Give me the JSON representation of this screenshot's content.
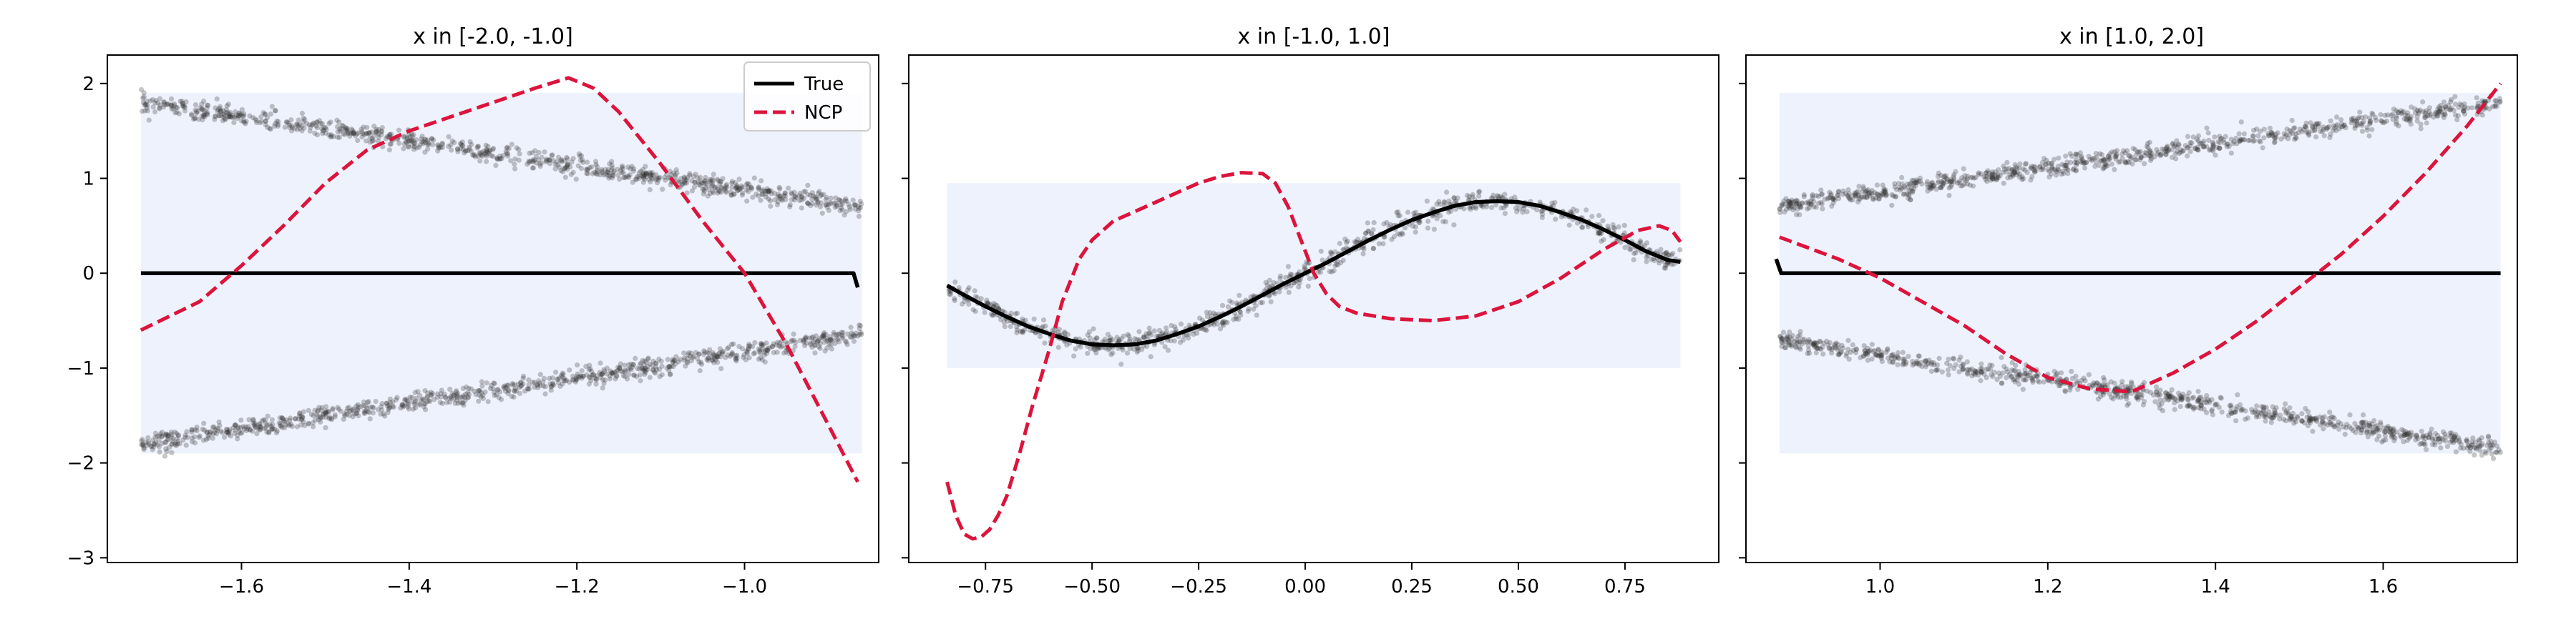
{
  "chart_data": [
    {
      "type": "line",
      "title": "x in [-2.0, -1.0]",
      "xlabel": "",
      "ylabel": "",
      "xlim": [
        -1.76,
        -0.84
      ],
      "ylim": [
        -3.05,
        2.3
      ],
      "xticks": [
        -1.6,
        -1.4,
        -1.2,
        -1.0
      ],
      "xtick_labels": [
        "−1.6",
        "−1.4",
        "−1.2",
        "−1.0"
      ],
      "yticks": [
        2,
        1,
        0,
        -1,
        -2,
        -3
      ],
      "ytick_labels": [
        "2",
        "1",
        "0",
        "−1",
        "−2",
        "−3"
      ],
      "grid": false,
      "legend": {
        "placement": "top-right",
        "entries": [
          "True",
          "NCP"
        ]
      },
      "shaded_band": {
        "x": [
          -1.72,
          -0.86
        ],
        "y": [
          -1.9,
          1.9
        ],
        "color": "#eef2fc"
      },
      "scatter_clouds": [
        {
          "x_range": [
            -1.72,
            -0.86
          ],
          "y_start": 1.8,
          "y_end": 0.7,
          "spread": 0.05
        },
        {
          "x_range": [
            -1.72,
            -0.86
          ],
          "y_start": -1.8,
          "y_end": -0.65,
          "spread": 0.05
        }
      ],
      "series": [
        {
          "name": "True",
          "style": "solid",
          "color": "#000000",
          "x": [
            -1.72,
            -1.6,
            -1.4,
            -1.2,
            -1.0,
            -0.87,
            -0.865
          ],
          "y": [
            0,
            0,
            0,
            0,
            0,
            0,
            -0.15
          ]
        },
        {
          "name": "NCP",
          "style": "dashed",
          "color": "#dc143c",
          "x": [
            -1.72,
            -1.65,
            -1.6,
            -1.55,
            -1.5,
            -1.45,
            -1.4,
            -1.35,
            -1.3,
            -1.25,
            -1.21,
            -1.18,
            -1.15,
            -1.1,
            -1.05,
            -1.0,
            -0.95,
            -0.9,
            -0.865
          ],
          "y": [
            -0.6,
            -0.3,
            0.08,
            0.5,
            0.95,
            1.3,
            1.5,
            1.65,
            1.8,
            1.95,
            2.06,
            1.95,
            1.7,
            1.15,
            0.55,
            0.0,
            -0.75,
            -1.6,
            -2.2
          ]
        }
      ]
    },
    {
      "type": "line",
      "title": "x in [-1.0, 1.0]",
      "xlabel": "",
      "ylabel": "",
      "xlim": [
        -0.93,
        0.97
      ],
      "ylim": [
        -3.05,
        2.3
      ],
      "xticks": [
        -0.75,
        -0.5,
        -0.25,
        0.0,
        0.25,
        0.5,
        0.75
      ],
      "xtick_labels": [
        "−0.75",
        "−0.50",
        "−0.25",
        "0.00",
        "0.25",
        "0.50",
        "0.75"
      ],
      "yticks": [
        2,
        1,
        0,
        -1,
        -2,
        -3
      ],
      "grid": false,
      "shaded_band": {
        "x": [
          -0.84,
          0.88
        ],
        "y": [
          -1.0,
          0.95
        ],
        "color": "#eef2fc"
      },
      "scatter_clouds": [
        {
          "x_range": [
            -0.84,
            0.88
          ],
          "follows": "True",
          "spread": 0.06
        }
      ],
      "series": [
        {
          "name": "True",
          "style": "solid",
          "color": "#000000",
          "x": [
            -0.84,
            -0.8,
            -0.75,
            -0.7,
            -0.65,
            -0.6,
            -0.55,
            -0.5,
            -0.45,
            -0.4,
            -0.35,
            -0.3,
            -0.25,
            -0.2,
            -0.15,
            -0.1,
            -0.05,
            0.0,
            0.05,
            0.1,
            0.15,
            0.2,
            0.25,
            0.3,
            0.35,
            0.4,
            0.45,
            0.5,
            0.55,
            0.6,
            0.65,
            0.7,
            0.75,
            0.8,
            0.85,
            0.88
          ],
          "y": [
            -0.13,
            -0.23,
            -0.35,
            -0.46,
            -0.56,
            -0.64,
            -0.71,
            -0.75,
            -0.76,
            -0.75,
            -0.71,
            -0.64,
            -0.56,
            -0.46,
            -0.35,
            -0.23,
            -0.11,
            0.0,
            0.11,
            0.23,
            0.35,
            0.46,
            0.56,
            0.64,
            0.71,
            0.75,
            0.76,
            0.75,
            0.71,
            0.64,
            0.56,
            0.46,
            0.35,
            0.23,
            0.14,
            0.12
          ]
        },
        {
          "name": "NCP",
          "style": "dashed",
          "color": "#dc143c",
          "x": [
            -0.84,
            -0.82,
            -0.8,
            -0.78,
            -0.76,
            -0.74,
            -0.72,
            -0.7,
            -0.67,
            -0.64,
            -0.6,
            -0.57,
            -0.53,
            -0.5,
            -0.45,
            -0.4,
            -0.35,
            -0.3,
            -0.25,
            -0.2,
            -0.15,
            -0.1,
            -0.07,
            -0.04,
            -0.01,
            0.02,
            0.05,
            0.08,
            0.12,
            0.2,
            0.3,
            0.4,
            0.5,
            0.6,
            0.7,
            0.78,
            0.83,
            0.86,
            0.88
          ],
          "y": [
            -2.2,
            -2.55,
            -2.75,
            -2.8,
            -2.78,
            -2.7,
            -2.55,
            -2.35,
            -1.9,
            -1.4,
            -0.8,
            -0.3,
            0.15,
            0.35,
            0.55,
            0.65,
            0.75,
            0.85,
            0.95,
            1.02,
            1.06,
            1.05,
            0.95,
            0.7,
            0.35,
            0.0,
            -0.22,
            -0.35,
            -0.42,
            -0.48,
            -0.5,
            -0.45,
            -0.3,
            -0.05,
            0.25,
            0.45,
            0.5,
            0.45,
            0.33
          ]
        }
      ]
    },
    {
      "type": "line",
      "title": "x in [1.0, 2.0]",
      "xlabel": "",
      "ylabel": "",
      "xlim": [
        0.84,
        1.76
      ],
      "ylim": [
        -3.05,
        2.3
      ],
      "xticks": [
        1.0,
        1.2,
        1.4,
        1.6
      ],
      "xtick_labels": [
        "1.0",
        "1.2",
        "1.4",
        "1.6"
      ],
      "yticks": [
        2,
        1,
        0,
        -1,
        -2,
        -3
      ],
      "grid": false,
      "shaded_band": {
        "x": [
          0.88,
          1.74
        ],
        "y": [
          -1.9,
          1.9
        ],
        "color": "#eef2fc"
      },
      "scatter_clouds": [
        {
          "x_range": [
            0.88,
            1.74
          ],
          "y_start": 0.7,
          "y_end": 1.8,
          "spread": 0.05
        },
        {
          "x_range": [
            0.88,
            1.74
          ],
          "y_start": -0.7,
          "y_end": -1.85,
          "spread": 0.05
        }
      ],
      "series": [
        {
          "name": "True",
          "style": "solid",
          "color": "#000000",
          "x": [
            0.876,
            0.882,
            1.0,
            1.2,
            1.4,
            1.6,
            1.74
          ],
          "y": [
            0.15,
            0,
            0,
            0,
            0,
            0,
            0
          ]
        },
        {
          "name": "NCP",
          "style": "dashed",
          "color": "#dc143c",
          "x": [
            0.88,
            0.95,
            1.0,
            1.05,
            1.1,
            1.15,
            1.2,
            1.25,
            1.3,
            1.35,
            1.4,
            1.45,
            1.5,
            1.55,
            1.6,
            1.65,
            1.7,
            1.74
          ],
          "y": [
            0.38,
            0.15,
            -0.05,
            -0.3,
            -0.55,
            -0.85,
            -1.1,
            -1.22,
            -1.25,
            -1.05,
            -0.8,
            -0.5,
            -0.15,
            0.2,
            0.6,
            1.05,
            1.55,
            2.0
          ]
        }
      ]
    }
  ]
}
